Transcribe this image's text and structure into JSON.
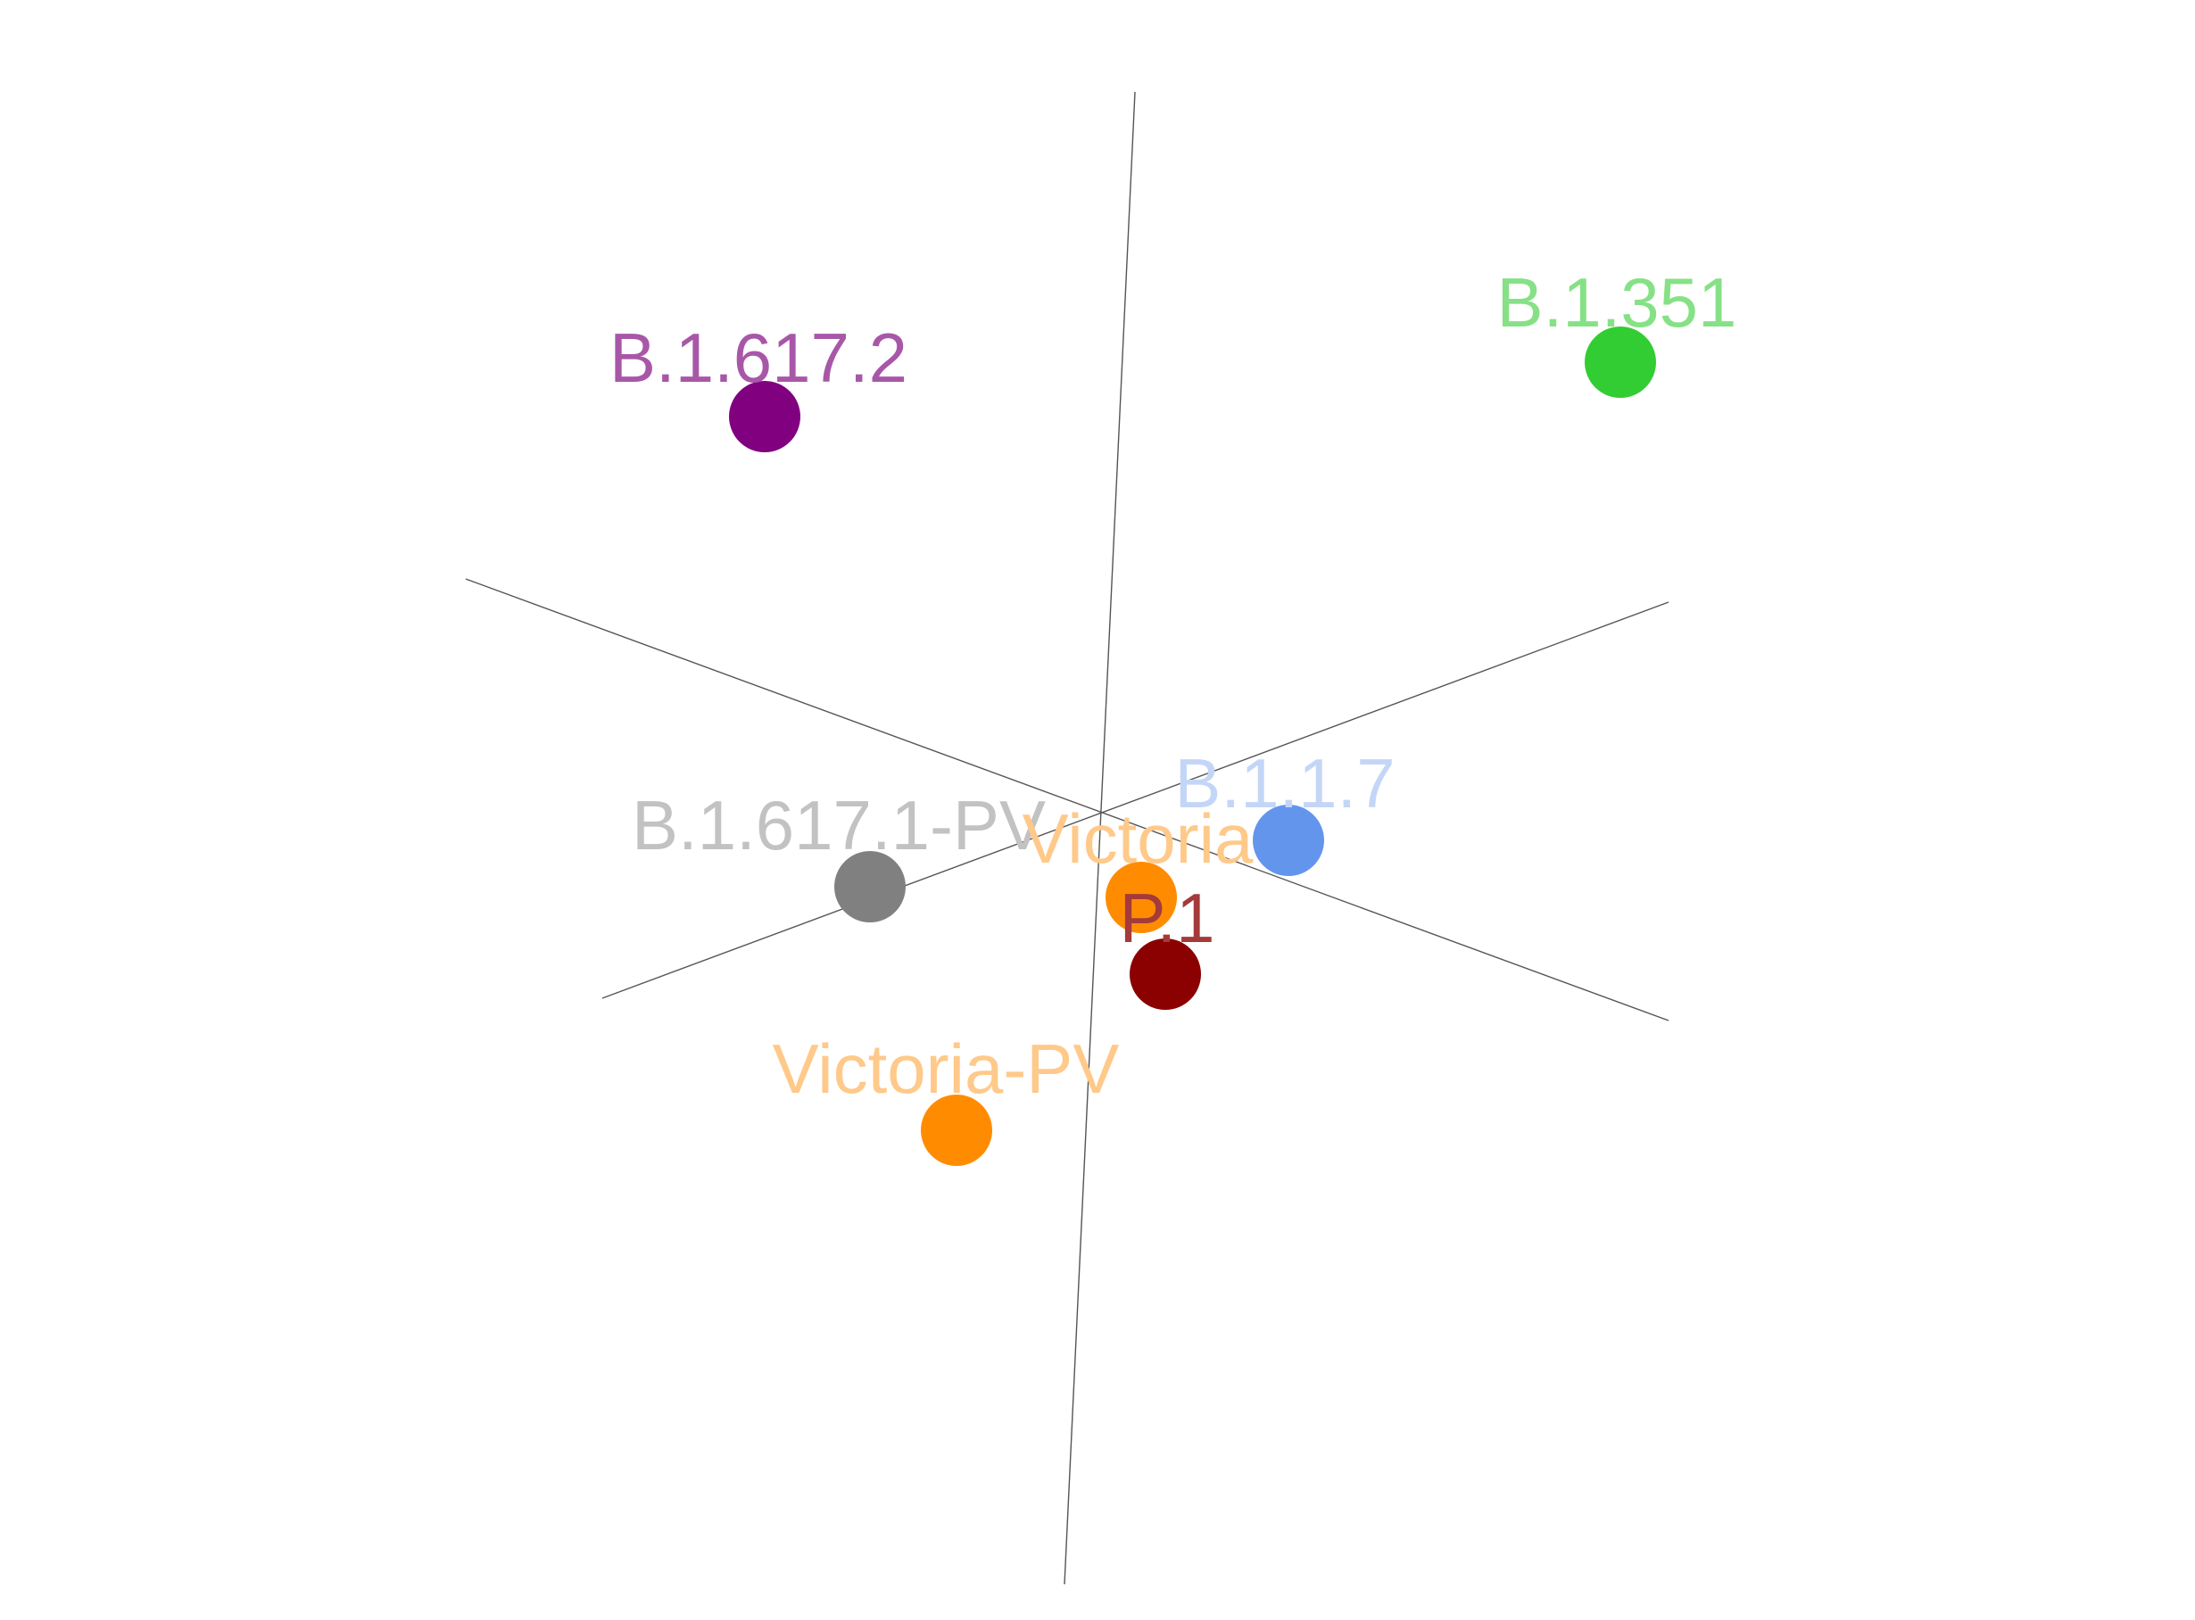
{
  "chart_data": {
    "type": "scatter",
    "projection": "3d",
    "title": "",
    "grid": false,
    "legend": "none",
    "points": [
      {
        "label": "B.1.617.2",
        "color": "#800080",
        "label_color": "#a857a8"
      },
      {
        "label": "B.1.351",
        "color": "#32cd32",
        "label_color": "#86e186"
      },
      {
        "label": "B.1.1.7",
        "color": "#6495ed",
        "label_color": "#c4d6f7"
      },
      {
        "label": "B.1.617.1-PV",
        "color": "#808080",
        "label_color": "#c2c2c2"
      },
      {
        "label": "Victoria",
        "color": "#ff8c00",
        "label_color": "#ffc98a"
      },
      {
        "label": "P.1",
        "color": "#8b0000",
        "label_color": "#a53a3a"
      },
      {
        "label": "Victoria-PV",
        "color": "#ff8c00",
        "label_color": "#ffc98a"
      }
    ]
  }
}
